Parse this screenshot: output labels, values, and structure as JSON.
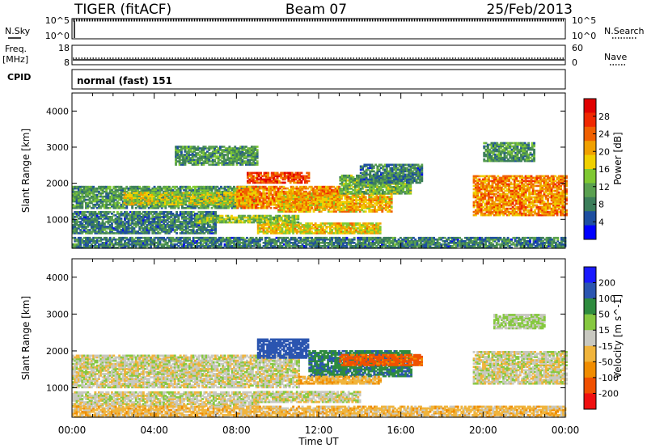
{
  "header": {
    "title": "TIGER (fitACF)",
    "beam": "Beam 07",
    "date": "25/Feb/2013"
  },
  "top_panels": {
    "nsky_label": "N.Sky",
    "nsky_ticks": [
      "10^5",
      "10^0"
    ],
    "nsearch_label": "N.Search",
    "nsearch_ticks": [
      "10^5",
      "10^0"
    ],
    "freq_label_1": "Freq.",
    "freq_label_2": "[MHz]",
    "freq_ticks": [
      "18",
      "8"
    ],
    "nave_label": "Nave",
    "nave_ticks": [
      "60",
      "0"
    ],
    "cpid_label": "CPID",
    "cpid_text": "normal (fast) 151"
  },
  "x_axis": {
    "label": "Time UT",
    "ticks": [
      "00:00",
      "04:00",
      "08:00",
      "12:00",
      "16:00",
      "20:00",
      "00:00"
    ]
  },
  "colors": {
    "power": [
      "#0000ff",
      "#1e4fa0",
      "#3c7e5a",
      "#5aa050",
      "#7fc832",
      "#f0d000",
      "#f0a000",
      "#f06000",
      "#f02800",
      "#e00000"
    ],
    "velocity": [
      "#1a1aff",
      "#2b55b0",
      "#2e8b3e",
      "#86c840",
      "#c8c8c0",
      "#f0b43c",
      "#f08c00",
      "#f05000",
      "#f01010"
    ]
  },
  "chart_data": [
    {
      "type": "heatmap",
      "quantity": "Power",
      "ylabel": "Slant Range [km]",
      "xlabel": "Time UT",
      "xlim": [
        0,
        24
      ],
      "ylim": [
        200,
        4500
      ],
      "yticks": [
        "1000",
        "2000",
        "3000",
        "4000"
      ],
      "colorbar": {
        "label": "Power [dB]",
        "range": [
          0,
          32
        ],
        "ticks": [
          "4",
          "8",
          "12",
          "16",
          "20",
          "24",
          "28"
        ]
      },
      "regions": [
        {
          "t": [
            0.0,
            9.0
          ],
          "r": [
            1300,
            1900
          ],
          "value": 10
        },
        {
          "t": [
            2.5,
            9.0
          ],
          "r": [
            1400,
            1750
          ],
          "value": 16
        },
        {
          "t": [
            8.0,
            13.0
          ],
          "r": [
            1300,
            1900
          ],
          "value": 22
        },
        {
          "t": [
            8.5,
            11.5
          ],
          "r": [
            2000,
            2300
          ],
          "value": 26
        },
        {
          "t": [
            10.0,
            15.5
          ],
          "r": [
            1200,
            1700
          ],
          "value": 20
        },
        {
          "t": [
            13.0,
            16.5
          ],
          "r": [
            1700,
            2200
          ],
          "value": 12
        },
        {
          "t": [
            0.0,
            7.0
          ],
          "r": [
            600,
            1200
          ],
          "value": 8
        },
        {
          "t": [
            9.0,
            15.0
          ],
          "r": [
            600,
            900
          ],
          "value": 18
        },
        {
          "t": [
            6.0,
            11.0
          ],
          "r": [
            900,
            1100
          ],
          "value": 14
        },
        {
          "t": [
            5.0,
            9.0
          ],
          "r": [
            2500,
            3000
          ],
          "value": 10
        },
        {
          "t": [
            14.0,
            17.0
          ],
          "r": [
            2000,
            2500
          ],
          "value": 8
        },
        {
          "t": [
            19.5,
            24.0
          ],
          "r": [
            1100,
            2200
          ],
          "value": 22
        },
        {
          "t": [
            20.0,
            22.5
          ],
          "r": [
            2600,
            3100
          ],
          "value": 10
        },
        {
          "t": [
            0.0,
            24.0
          ],
          "r": [
            200,
            500
          ],
          "value": 8
        }
      ]
    },
    {
      "type": "heatmap",
      "quantity": "Velocity",
      "ylabel": "Slant Range [km]",
      "xlabel": "Time UT",
      "xlim": [
        0,
        24
      ],
      "ylim": [
        200,
        4500
      ],
      "yticks": [
        "1000",
        "2000",
        "3000",
        "4000"
      ],
      "colorbar": {
        "label": "Velocity [m s^-1]",
        "ticks": [
          "200",
          "100",
          "50",
          "15",
          "-15",
          "-50",
          "-100",
          "-200"
        ]
      },
      "regions": [
        {
          "t": [
            0.0,
            11.0
          ],
          "r": [
            1000,
            1900
          ],
          "value": 0
        },
        {
          "t": [
            0.0,
            9.0
          ],
          "r": [
            500,
            900
          ],
          "value": 0
        },
        {
          "t": [
            9.0,
            11.5
          ],
          "r": [
            1800,
            2300
          ],
          "value": 150
        },
        {
          "t": [
            11.5,
            16.5
          ],
          "r": [
            1300,
            2000
          ],
          "value": 90
        },
        {
          "t": [
            13.0,
            17.0
          ],
          "r": [
            1600,
            1900
          ],
          "value": -120
        },
        {
          "t": [
            11.0,
            15.0
          ],
          "r": [
            1100,
            1300
          ],
          "value": -40
        },
        {
          "t": [
            9.0,
            14.0
          ],
          "r": [
            600,
            900
          ],
          "value": 0
        },
        {
          "t": [
            19.5,
            24.0
          ],
          "r": [
            1100,
            2000
          ],
          "value": 0
        },
        {
          "t": [
            20.5,
            23.0
          ],
          "r": [
            2600,
            3000
          ],
          "value": 20
        },
        {
          "t": [
            0.0,
            24.0
          ],
          "r": [
            200,
            500
          ],
          "value": -30
        }
      ]
    }
  ]
}
